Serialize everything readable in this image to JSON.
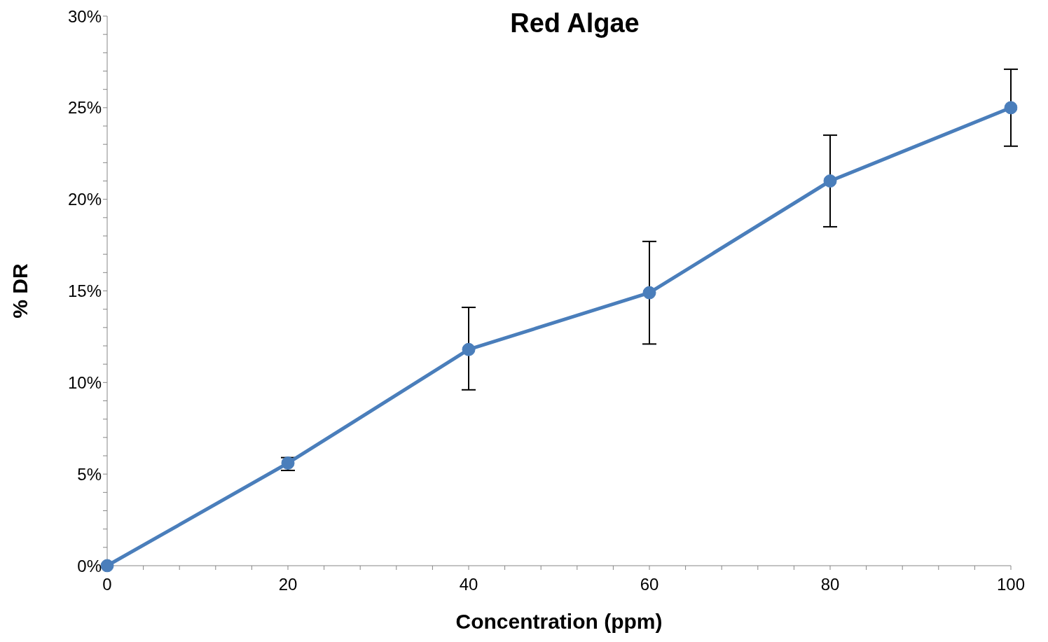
{
  "chart_data": {
    "type": "line",
    "title": "Red Algae",
    "xlabel": "Concentration (ppm)",
    "ylabel": "% DR",
    "x": [
      0,
      20,
      40,
      60,
      80,
      100
    ],
    "series": [
      {
        "color": "#4a7ebb",
        "values": [
          0,
          5.6,
          11.8,
          14.9,
          21.0,
          25.0
        ],
        "errors": [
          null,
          [
            5.2,
            5.9
          ],
          [
            9.6,
            14.1
          ],
          [
            12.1,
            17.7
          ],
          [
            18.5,
            23.5
          ],
          [
            22.9,
            27.1
          ]
        ]
      }
    ],
    "xlim": [
      0,
      100
    ],
    "xticks": [
      0,
      {
        "value": 4,
        "label": null
      },
      {
        "value": 8,
        "label": null
      },
      {
        "value": 12,
        "label": null
      },
      {
        "value": 16,
        "label": null
      },
      20,
      {
        "value": 24,
        "label": null
      },
      {
        "value": 28,
        "label": null
      },
      {
        "value": 32,
        "label": null
      },
      {
        "value": 36,
        "label": null
      },
      40,
      {
        "value": 44,
        "label": null
      },
      {
        "value": 48,
        "label": null
      },
      {
        "value": 52,
        "label": null
      },
      {
        "value": 56,
        "label": null
      },
      60,
      {
        "value": 64,
        "label": null
      },
      {
        "value": 68,
        "label": null
      },
      {
        "value": 72,
        "label": null
      },
      {
        "value": 76,
        "label": null
      },
      80,
      {
        "value": 84,
        "label": null
      },
      {
        "value": 88,
        "label": null
      },
      {
        "value": 92,
        "label": null
      },
      {
        "value": 96,
        "label": null
      },
      100
    ],
    "ylim": [
      0,
      30
    ],
    "yticks": [
      {
        "value": 0,
        "label": "0%"
      },
      {
        "value": 1,
        "label": null
      },
      {
        "value": 2,
        "label": null
      },
      {
        "value": 3,
        "label": null
      },
      {
        "value": 4,
        "label": null
      },
      {
        "value": 5,
        "label": "5%"
      },
      {
        "value": 6,
        "label": null
      },
      {
        "value": 7,
        "label": null
      },
      {
        "value": 8,
        "label": null
      },
      {
        "value": 9,
        "label": null
      },
      {
        "value": 10,
        "label": "10%"
      },
      {
        "value": 11,
        "label": null
      },
      {
        "value": 12,
        "label": null
      },
      {
        "value": 13,
        "label": null
      },
      {
        "value": 14,
        "label": null
      },
      {
        "value": 15,
        "label": "15%"
      },
      {
        "value": 16,
        "label": null
      },
      {
        "value": 17,
        "label": null
      },
      {
        "value": 18,
        "label": null
      },
      {
        "value": 19,
        "label": null
      },
      {
        "value": 20,
        "label": "20%"
      },
      {
        "value": 21,
        "label": null
      },
      {
        "value": 22,
        "label": null
      },
      {
        "value": 23,
        "label": null
      },
      {
        "value": 24,
        "label": null
      },
      {
        "value": 25,
        "label": "25%"
      },
      {
        "value": 26,
        "label": null
      },
      {
        "value": 27,
        "label": null
      },
      {
        "value": 28,
        "label": null
      },
      {
        "value": 29,
        "label": null
      },
      {
        "value": 30,
        "label": "30%"
      }
    ],
    "grid": false,
    "legend": false,
    "marker": "circle",
    "line_style": "solid"
  }
}
